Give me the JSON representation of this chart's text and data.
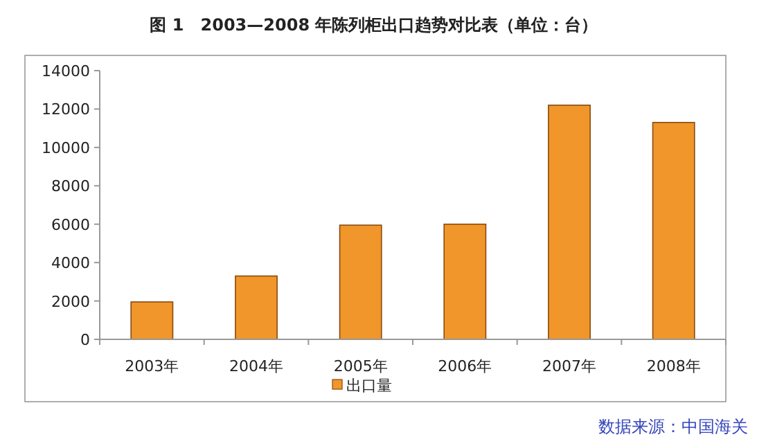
{
  "chart_data": {
    "type": "bar",
    "title": "图 1　2003—2008 年陈列柜出口趋势对比表（单位：台）",
    "categories": [
      "2003年",
      "2004年",
      "2005年",
      "2006年",
      "2007年",
      "2008年"
    ],
    "series": [
      {
        "name": "出口量",
        "color": "#f0962a",
        "values": [
          1950,
          3300,
          5950,
          6000,
          12200,
          11300
        ]
      }
    ],
    "ylim": [
      0,
      14000
    ],
    "yticks": [
      0,
      2000,
      4000,
      6000,
      8000,
      10000,
      12000,
      14000
    ],
    "legend": "bottom",
    "annotations": [
      "数据来源：中国海关"
    ]
  }
}
